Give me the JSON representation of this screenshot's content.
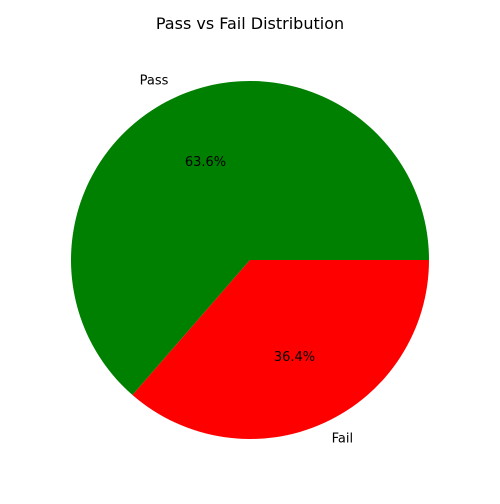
{
  "chart_data": {
    "type": "pie",
    "title": "Pass vs Fail Distribution",
    "slices": [
      {
        "label": "Pass",
        "value": 63.6,
        "pct_label": "63.6%",
        "color": "#008000"
      },
      {
        "label": "Fail",
        "value": 36.4,
        "pct_label": "36.4%",
        "color": "#ff0000"
      }
    ],
    "start_angle_deg": 0,
    "direction": "counterclockwise",
    "legend": "none"
  }
}
